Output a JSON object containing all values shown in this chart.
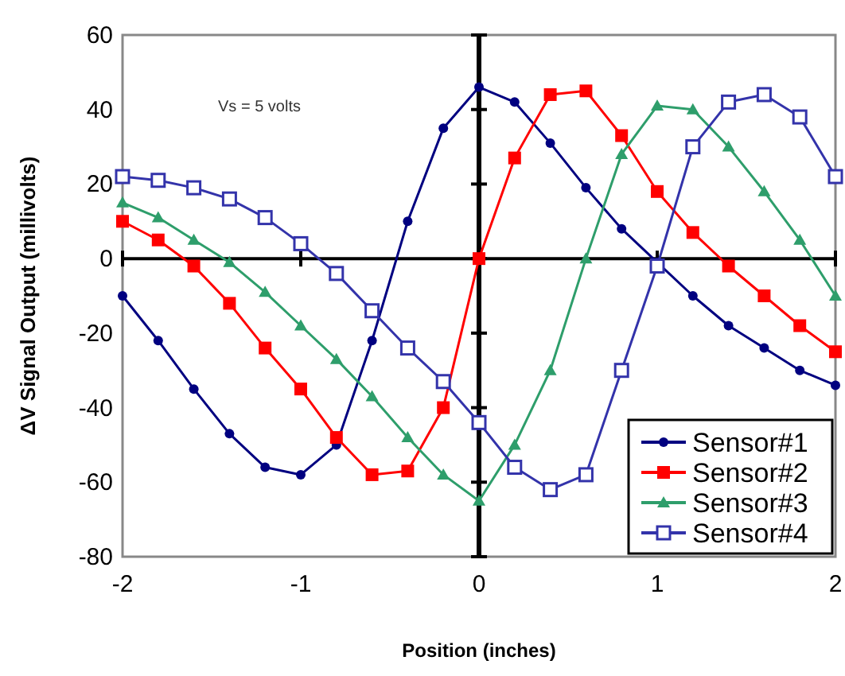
{
  "chart_data": {
    "type": "line",
    "xlabel": "Position (inches)",
    "ylabel": "ΔV Signal Output (millivolts)",
    "annotations": [
      "Vs = 5 volts"
    ],
    "x": [
      -2,
      -1.8,
      -1.6,
      -1.4,
      -1.2,
      -1,
      -0.8,
      -0.6,
      -0.4,
      -0.2,
      0,
      0.2,
      0.4,
      0.6,
      0.8,
      1,
      1.2,
      1.4,
      1.6,
      1.8,
      2
    ],
    "xlim": [
      -2,
      2
    ],
    "xticks": [
      -2,
      -1,
      0,
      1,
      2
    ],
    "ylim": [
      -80,
      60
    ],
    "yticks": [
      -80,
      -60,
      -40,
      -20,
      0,
      20,
      40,
      60
    ],
    "grid": false,
    "legend": "bottom right",
    "series": [
      {
        "name": "Sensor#1",
        "color": "#000080",
        "marker": "circle",
        "values": [
          -10,
          -22,
          -35,
          -47,
          -56,
          -58,
          -50,
          -22,
          10,
          35,
          46,
          42,
          31,
          19,
          8,
          -1,
          -10,
          -18,
          -24,
          -30,
          -34
        ]
      },
      {
        "name": "Sensor#2",
        "color": "#ff0000",
        "marker": "square",
        "values": [
          10,
          5,
          -2,
          -12,
          -24,
          -35,
          -48,
          -58,
          -57,
          -40,
          0,
          27,
          44,
          45,
          33,
          18,
          7,
          -2,
          -10,
          -18,
          -25
        ]
      },
      {
        "name": "Sensor#3",
        "color": "#2e9e6b",
        "marker": "triangle",
        "values": [
          15,
          11,
          5,
          -1,
          -9,
          -18,
          -27,
          -37,
          -48,
          -58,
          -65,
          -50,
          -30,
          0,
          28,
          41,
          40,
          30,
          18,
          5,
          -10
        ]
      },
      {
        "name": "Sensor#4",
        "color": "#3333aa",
        "marker": "square",
        "values": [
          22,
          21,
          19,
          16,
          11,
          4,
          -4,
          -14,
          -24,
          -33,
          -44,
          -56,
          -62,
          -58,
          -30,
          -2,
          30,
          42,
          44,
          38,
          22
        ]
      }
    ]
  }
}
